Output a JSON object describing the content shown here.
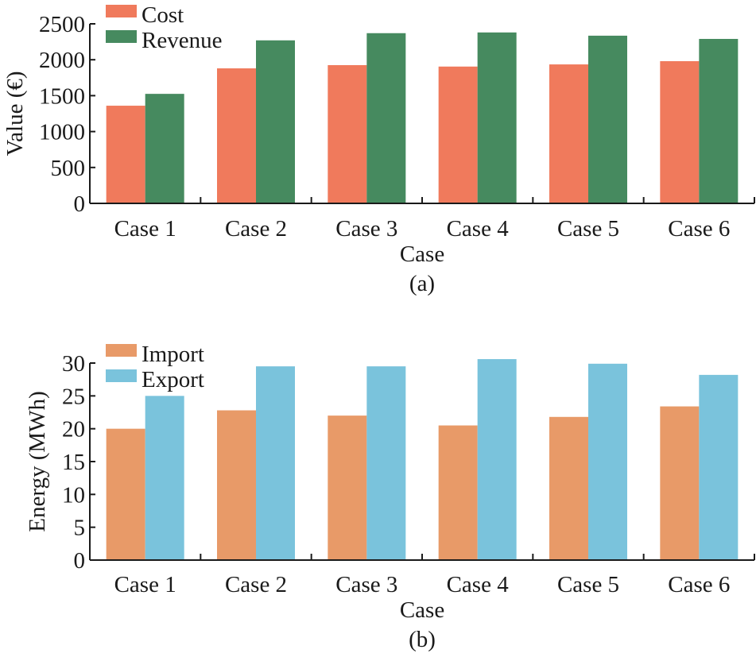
{
  "chart_data": [
    {
      "type": "bar",
      "panel_label": "(a)",
      "title": "",
      "xlabel": "Case",
      "ylabel": "Value (€)",
      "categories": [
        "Case 1",
        "Case 2",
        "Case 3",
        "Case 4",
        "Case 5",
        "Case 6"
      ],
      "series": [
        {
          "name": "Cost",
          "color": "#F07A5C",
          "values": [
            1360,
            1880,
            1925,
            1905,
            1935,
            1980
          ]
        },
        {
          "name": "Revenue",
          "color": "#468A5F",
          "values": [
            1525,
            2270,
            2370,
            2380,
            2335,
            2290
          ]
        }
      ],
      "ylim": [
        0,
        2500
      ],
      "yticks": [
        0,
        500,
        1000,
        1500,
        2000,
        2500
      ],
      "grid": false,
      "legend_position": "top-left"
    },
    {
      "type": "bar",
      "panel_label": "(b)",
      "title": "",
      "xlabel": "Case",
      "ylabel": "Energy (MWh)",
      "categories": [
        "Case 1",
        "Case 2",
        "Case 3",
        "Case 4",
        "Case 5",
        "Case 6"
      ],
      "series": [
        {
          "name": "Import",
          "color": "#E89A68",
          "values": [
            20.0,
            22.8,
            22.0,
            20.5,
            21.8,
            23.4
          ]
        },
        {
          "name": "Export",
          "color": "#7AC3DC",
          "values": [
            25.0,
            29.5,
            29.5,
            30.6,
            29.9,
            28.2
          ]
        }
      ],
      "ylim": [
        0,
        30
      ],
      "yticks": [
        0,
        5,
        10,
        15,
        20,
        25,
        30
      ],
      "grid": false,
      "legend_position": "top-left"
    }
  ]
}
